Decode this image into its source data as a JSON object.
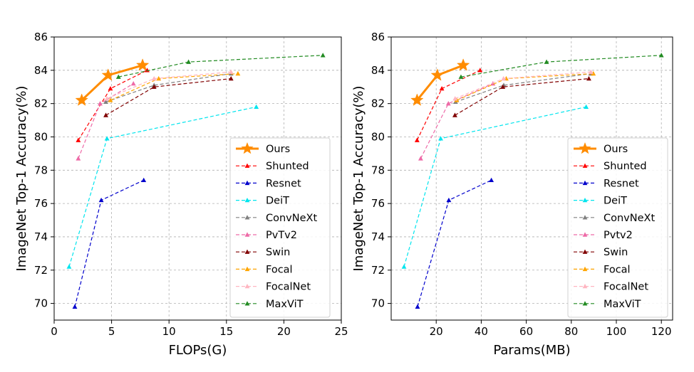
{
  "chart_data": [
    {
      "type": "line",
      "xlabel": "FLOPs(G)",
      "ylabel": "ImageNet Top-1 Accuracy(%)",
      "xlim": [
        0,
        25
      ],
      "ylim": [
        69,
        86
      ],
      "xticks": [
        0,
        5,
        10,
        15,
        20,
        25
      ],
      "yticks": [
        70,
        72,
        74,
        76,
        78,
        80,
        82,
        84,
        86
      ],
      "grid": true,
      "legend_position": "lower-right",
      "series": [
        {
          "name": "Ours",
          "color": "#ff8c00",
          "marker": "star",
          "style": "solid",
          "x": [
            2.4,
            4.7,
            7.7
          ],
          "y": [
            82.2,
            83.7,
            84.3
          ]
        },
        {
          "name": "Shunted",
          "color": "#ff0000",
          "marker": "triangle",
          "style": "dashed",
          "x": [
            2.1,
            4.9,
            8.1
          ],
          "y": [
            79.8,
            82.9,
            84.0
          ]
        },
        {
          "name": "Resnet",
          "color": "#0000cc",
          "marker": "triangle",
          "style": "dashed",
          "x": [
            1.8,
            4.1,
            7.8
          ],
          "y": [
            69.8,
            76.2,
            77.4
          ]
        },
        {
          "name": "DeiT",
          "color": "#00e5ee",
          "marker": "triangle",
          "style": "dashed",
          "x": [
            1.3,
            4.6,
            17.6
          ],
          "y": [
            72.2,
            79.9,
            81.8
          ]
        },
        {
          "name": "ConvNeXt",
          "color": "#808080",
          "marker": "triangle",
          "style": "dashed",
          "x": [
            4.5,
            8.7,
            15.4
          ],
          "y": [
            82.1,
            83.1,
            83.8
          ]
        },
        {
          "name": "PvTv2",
          "color": "#ee6aa7",
          "marker": "triangle",
          "style": "dashed",
          "x": [
            2.1,
            4.0,
            6.9
          ],
          "y": [
            78.7,
            82.0,
            83.2
          ]
        },
        {
          "name": "Swin",
          "color": "#800000",
          "marker": "triangle",
          "style": "dashed",
          "x": [
            4.5,
            8.7,
            15.4
          ],
          "y": [
            81.3,
            83.0,
            83.5
          ]
        },
        {
          "name": "Focal",
          "color": "#ffa500",
          "marker": "triangle",
          "style": "dashed",
          "x": [
            4.9,
            9.1,
            16.0
          ],
          "y": [
            82.2,
            83.5,
            83.8
          ]
        },
        {
          "name": "FocalNet",
          "color": "#ffb6c1",
          "marker": "triangle",
          "style": "dashed",
          "x": [
            4.6,
            8.7,
            15.4
          ],
          "y": [
            82.3,
            83.5,
            83.9
          ]
        },
        {
          "name": "MaxViT",
          "color": "#228b22",
          "marker": "triangle",
          "style": "dashed",
          "x": [
            5.6,
            11.7,
            23.4
          ],
          "y": [
            83.6,
            84.5,
            84.9
          ]
        }
      ]
    },
    {
      "type": "line",
      "xlabel": "Params(MB)",
      "ylabel": "ImageNet Top-1 Accuracy(%)",
      "xlim": [
        0,
        125
      ],
      "ylim": [
        69,
        86
      ],
      "xticks": [
        20,
        40,
        60,
        80,
        100,
        120
      ],
      "yticks": [
        70,
        72,
        74,
        76,
        78,
        80,
        82,
        84,
        86
      ],
      "grid": true,
      "legend_position": "lower-right",
      "series": [
        {
          "name": "Ours",
          "color": "#ff8c00",
          "marker": "star",
          "style": "solid",
          "x": [
            11.5,
            20.5,
            32
          ],
          "y": [
            82.2,
            83.7,
            84.3
          ]
        },
        {
          "name": "Shunted",
          "color": "#ff0000",
          "marker": "triangle",
          "style": "dashed",
          "x": [
            11.5,
            22.5,
            39.5
          ],
          "y": [
            79.8,
            82.9,
            84.0
          ]
        },
        {
          "name": "Resnet",
          "color": "#0000cc",
          "marker": "triangle",
          "style": "dashed",
          "x": [
            11.7,
            25.6,
            44.5
          ],
          "y": [
            69.8,
            76.2,
            77.4
          ]
        },
        {
          "name": "DeiT",
          "color": "#00e5ee",
          "marker": "triangle",
          "style": "dashed",
          "x": [
            5.7,
            22,
            86.6
          ],
          "y": [
            72.2,
            79.9,
            81.8
          ]
        },
        {
          "name": "ConvNeXt",
          "color": "#808080",
          "marker": "triangle",
          "style": "dashed",
          "x": [
            28.6,
            50,
            88.6
          ],
          "y": [
            82.1,
            83.1,
            83.8
          ]
        },
        {
          "name": "Pvtv2",
          "color": "#ee6aa7",
          "marker": "triangle",
          "style": "dashed",
          "x": [
            13.1,
            25.4,
            45.2
          ],
          "y": [
            78.7,
            82.0,
            83.2
          ]
        },
        {
          "name": "Swin",
          "color": "#800000",
          "marker": "triangle",
          "style": "dashed",
          "x": [
            28.3,
            49.6,
            87.8
          ],
          "y": [
            81.3,
            83.0,
            83.5
          ]
        },
        {
          "name": "Focal",
          "color": "#ffa500",
          "marker": "triangle",
          "style": "dashed",
          "x": [
            29.1,
            51.1,
            89.8
          ],
          "y": [
            82.2,
            83.5,
            83.8
          ]
        },
        {
          "name": "FocalNet",
          "color": "#ffb6c1",
          "marker": "triangle",
          "style": "dashed",
          "x": [
            28.4,
            49.9,
            88.7
          ],
          "y": [
            82.3,
            83.5,
            83.9
          ]
        },
        {
          "name": "MaxViT",
          "color": "#228b22",
          "marker": "triangle",
          "style": "dashed",
          "x": [
            31,
            69,
            120
          ],
          "y": [
            83.6,
            84.5,
            84.9
          ]
        }
      ]
    }
  ]
}
